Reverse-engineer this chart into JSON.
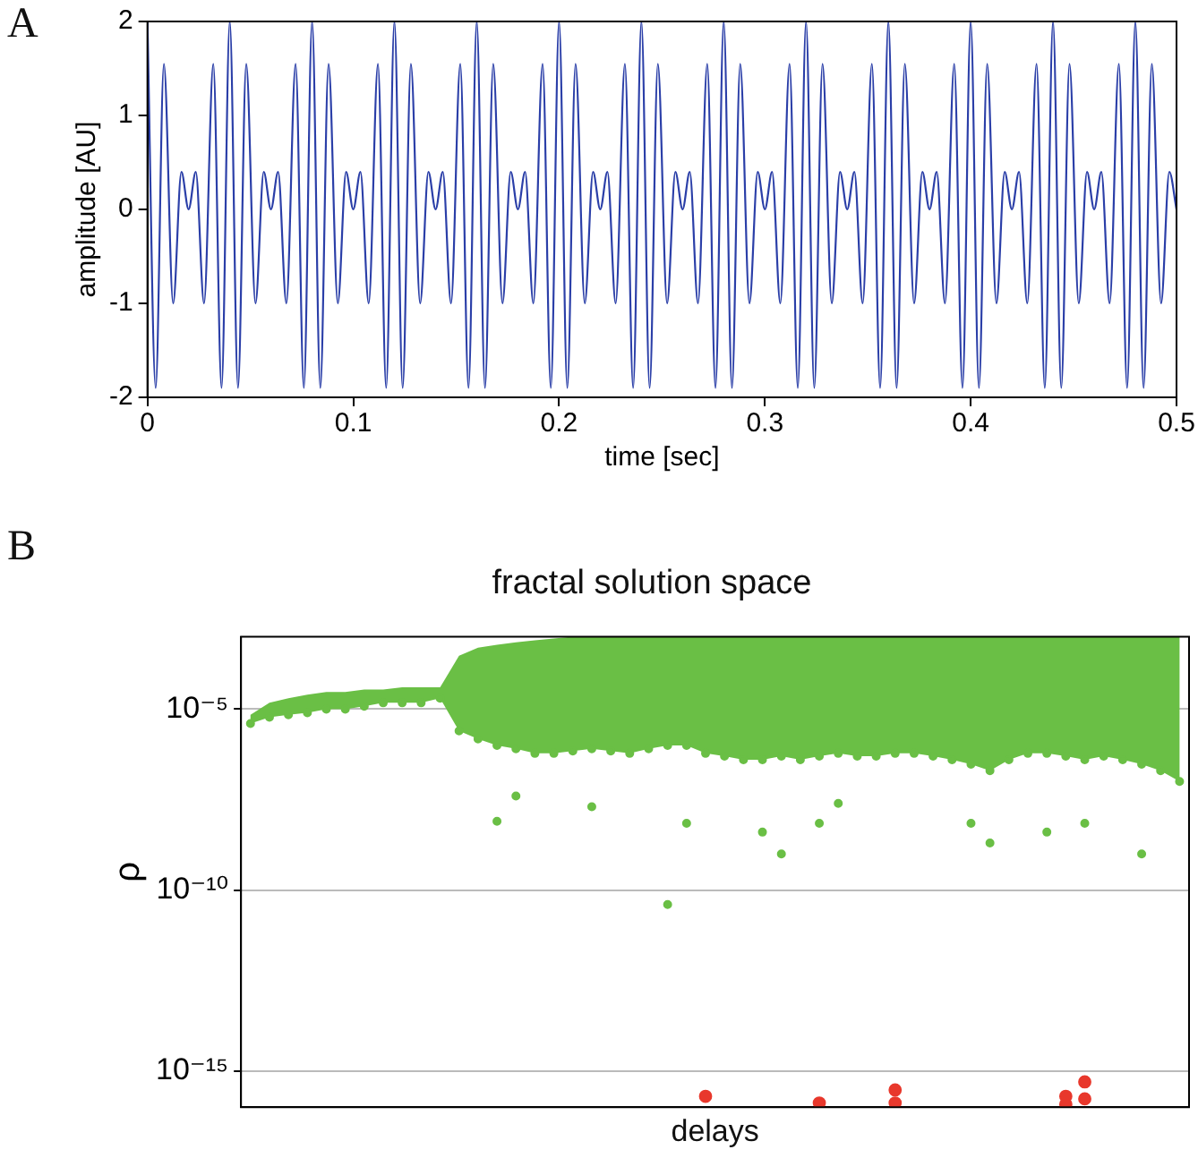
{
  "chart_data": [
    {
      "type": "line",
      "annotations": [
        "A"
      ],
      "xlabel": "time [sec]",
      "ylabel": "amplitude [AU]",
      "xlim": [
        0,
        0.5
      ],
      "xticks": [
        0,
        0.1,
        0.2,
        0.3,
        0.4,
        0.5
      ],
      "ylim": [
        -2,
        2
      ],
      "yticks": [
        -2,
        -1,
        0,
        1,
        2
      ],
      "grid": false,
      "legend": false,
      "marker": "none",
      "line_style": "solid",
      "series": [
        {
          "color": "#2b3fa8",
          "x": [
            0,
            0.004,
            0.008,
            0.0125,
            0.0165,
            0.02,
            0.0235,
            0.0275,
            0.032,
            0.036,
            0.04,
            0.044,
            0.048,
            0.0525,
            0.0565,
            0.06,
            0.0635,
            0.0675,
            0.072,
            0.076,
            0.08,
            0.084,
            0.088,
            0.0925,
            0.0965,
            0.1,
            0.1035,
            0.1075,
            0.112,
            0.116,
            0.12,
            0.124,
            0.128,
            0.1325,
            0.1365,
            0.14,
            0.1435,
            0.1475,
            0.152,
            0.156,
            0.16,
            0.164,
            0.168,
            0.1725,
            0.1765,
            0.18,
            0.1835,
            0.1875,
            0.192,
            0.196,
            0.2,
            0.204,
            0.208,
            0.2125,
            0.2165,
            0.22,
            0.2235,
            0.2275,
            0.232,
            0.236,
            0.24,
            0.244,
            0.248,
            0.2525,
            0.2565,
            0.26,
            0.2635,
            0.2675,
            0.272,
            0.276,
            0.28,
            0.284,
            0.288,
            0.2925,
            0.2965,
            0.3,
            0.3035,
            0.3075,
            0.312,
            0.316,
            0.32,
            0.324,
            0.328,
            0.3325,
            0.3365,
            0.34,
            0.3435,
            0.3475,
            0.352,
            0.356,
            0.36,
            0.364,
            0.368,
            0.3725,
            0.3765,
            0.38,
            0.3835,
            0.3875,
            0.392,
            0.396,
            0.4,
            0.404,
            0.408,
            0.4125,
            0.4165,
            0.42,
            0.4235,
            0.4275,
            0.432,
            0.436,
            0.44,
            0.444,
            0.448,
            0.4525,
            0.4565,
            0.46,
            0.4635,
            0.4675,
            0.472,
            0.476,
            0.48,
            0.484,
            0.488,
            0.4925,
            0.4965,
            0.5
          ],
          "values": [
            2,
            -1.9,
            1.55,
            -1,
            0.4,
            0,
            0.4,
            -1,
            1.55,
            -1.9,
            2,
            -1.9,
            1.55,
            -1,
            0.4,
            0,
            0.4,
            -1,
            1.55,
            -1.9,
            2,
            -1.9,
            1.55,
            -1,
            0.4,
            0,
            0.4,
            -1,
            1.55,
            -1.9,
            2,
            -1.9,
            1.55,
            -1,
            0.4,
            0,
            0.4,
            -1,
            1.55,
            -1.9,
            2,
            -1.9,
            1.55,
            -1,
            0.4,
            0,
            0.4,
            -1,
            1.55,
            -1.9,
            2,
            -1.9,
            1.55,
            -1,
            0.4,
            0,
            0.4,
            -1,
            1.55,
            -1.9,
            2,
            -1.9,
            1.55,
            -1,
            0.4,
            0,
            0.4,
            -1,
            1.55,
            -1.9,
            2,
            -1.9,
            1.55,
            -1,
            0.4,
            0,
            0.4,
            -1,
            1.55,
            -1.9,
            2,
            -1.9,
            1.55,
            -1,
            0.4,
            0,
            0.4,
            -1,
            1.55,
            -1.9,
            2,
            -1.9,
            1.55,
            -1,
            0.4,
            0,
            0.4,
            -1,
            1.55,
            -1.9,
            2,
            -1.9,
            1.55,
            -1,
            0.4,
            0,
            0.4,
            -1,
            1.55,
            -1.9,
            2,
            -1.9,
            1.55,
            -1,
            0.4,
            0,
            0.4,
            -1,
            1.55,
            -1.9,
            2,
            -1.9,
            1.55,
            -1,
            0.4,
            0
          ]
        }
      ]
    },
    {
      "type": "scatter",
      "annotations": [
        "B"
      ],
      "title": "fractal solution space",
      "xlabel": "delays",
      "ylabel": "ρ",
      "categories": [
        null,
        null,
        null,
        null,
        null,
        null,
        null,
        null,
        null,
        null,
        null,
        null,
        null,
        null,
        null,
        null,
        null,
        null,
        null,
        null,
        null,
        null,
        null,
        null,
        null,
        null,
        null,
        null,
        null,
        null,
        null,
        null,
        null,
        null,
        null,
        null,
        null,
        null,
        null,
        null,
        null,
        null,
        null,
        null,
        null,
        null,
        null,
        null,
        null,
        null
      ],
      "log": "y",
      "ylim": [
        1e-16,
        0.001
      ],
      "yticks": [
        {
          "value": 1e-15,
          "label": "10⁻¹⁵"
        },
        {
          "value": 1e-10,
          "label": "10⁻¹⁰"
        },
        {
          "value": 1e-05,
          "label": "10⁻⁵"
        }
      ],
      "grid": "y",
      "legend": false,
      "tick_labels": "y",
      "marker": "circle",
      "series": [
        {
          "color": "#6abf45",
          "values": [
            4e-06,
            6e-06,
            7e-06,
            8e-06,
            1e-05,
            1e-05,
            1.2e-05,
            1.5e-05,
            1.5e-05,
            1.5e-05,
            2e-05,
            2.5e-06,
            1.5e-06,
            1e-06,
            8e-07,
            6e-07,
            6e-07,
            7e-07,
            8e-07,
            7e-07,
            6e-07,
            8e-07,
            1e-06,
            1e-06,
            6e-07,
            5e-07,
            4e-07,
            4e-07,
            5e-07,
            4e-07,
            5e-07,
            6e-07,
            5e-07,
            5e-07,
            6e-07,
            6e-07,
            5e-07,
            4e-07,
            3e-07,
            2e-07,
            4e-07,
            6e-07,
            6e-07,
            5e-07,
            4e-07,
            5e-07,
            4e-07,
            3e-07,
            2e-07,
            1e-07
          ],
          "lower": [
            4e-06,
            6e-06,
            7e-06,
            8e-06,
            1e-05,
            1e-05,
            1.2e-05,
            1.5e-05,
            1.5e-05,
            1.5e-05,
            2e-05,
            2.5e-06,
            1.5e-06,
            1e-06,
            8e-07,
            6e-07,
            6e-07,
            7e-07,
            8e-07,
            7e-07,
            6e-07,
            8e-07,
            1e-06,
            1e-06,
            6e-07,
            5e-07,
            4e-07,
            4e-07,
            5e-07,
            4e-07,
            5e-07,
            6e-07,
            5e-07,
            5e-07,
            6e-07,
            6e-07,
            5e-07,
            4e-07,
            3e-07,
            2e-07,
            4e-07,
            6e-07,
            6e-07,
            5e-07,
            4e-07,
            5e-07,
            4e-07,
            3e-07,
            2e-07,
            1e-07
          ],
          "upper": [
            7e-06,
            1.5e-05,
            2e-05,
            2.5e-05,
            3e-05,
            3e-05,
            3.5e-05,
            3.5e-05,
            4e-05,
            4e-05,
            4e-05,
            0.0003,
            0.0005,
            0.0006,
            0.0007,
            0.0008,
            0.0009,
            0.001,
            0.001,
            0.001,
            0.001,
            0.001,
            0.001,
            0.001,
            0.001,
            0.001,
            0.001,
            0.001,
            0.001,
            0.001,
            0.001,
            0.001,
            0.001,
            0.001,
            0.001,
            0.001,
            0.001,
            0.001,
            0.001,
            0.001,
            0.001,
            0.001,
            0.001,
            0.001,
            0.001,
            0.001,
            0.001,
            0.001,
            0.001,
            0.001
          ]
        },
        {
          "color": "#6abf45",
          "values": [
            null,
            null,
            null,
            null,
            null,
            null,
            null,
            null,
            null,
            null,
            null,
            null,
            null,
            8e-09,
            4e-08,
            null,
            null,
            null,
            2e-08,
            null,
            null,
            null,
            4e-11,
            7e-09,
            null,
            null,
            null,
            4e-09,
            1e-09,
            null,
            7e-09,
            2.5e-08,
            null,
            null,
            null,
            null,
            null,
            null,
            7e-09,
            2e-09,
            null,
            null,
            4e-09,
            null,
            7e-09,
            null,
            null,
            1e-09,
            null,
            null
          ]
        },
        {
          "color": "#e8382c",
          "values": [
            null,
            null,
            null,
            null,
            null,
            null,
            null,
            null,
            null,
            null,
            null,
            null,
            null,
            null,
            null,
            null,
            null,
            null,
            null,
            null,
            null,
            null,
            null,
            null,
            2e-16,
            null,
            null,
            null,
            null,
            null,
            1.3e-16,
            null,
            null,
            null,
            3e-16,
            null,
            null,
            null,
            null,
            null,
            null,
            null,
            null,
            2e-16,
            5e-16,
            null,
            null,
            null,
            null,
            null
          ]
        },
        {
          "color": "#e8382c",
          "values": [
            null,
            null,
            null,
            null,
            null,
            null,
            null,
            null,
            null,
            null,
            null,
            null,
            null,
            null,
            null,
            null,
            null,
            null,
            null,
            null,
            null,
            null,
            null,
            null,
            null,
            null,
            null,
            null,
            null,
            null,
            null,
            null,
            null,
            null,
            1.3e-16,
            null,
            null,
            null,
            null,
            null,
            null,
            null,
            null,
            1.2e-16,
            1.7e-16,
            null,
            null,
            null,
            null,
            null
          ]
        }
      ]
    }
  ]
}
